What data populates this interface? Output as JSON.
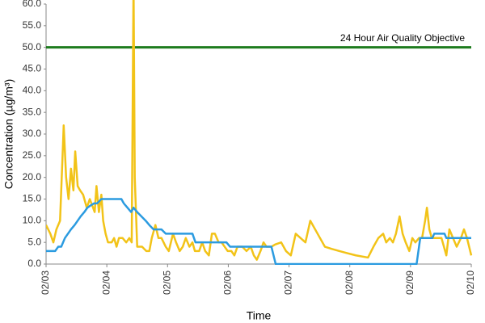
{
  "chart_data": {
    "type": "line",
    "ylabel": "Concentration (µg/m³)",
    "xlabel": "Time",
    "xlim": [
      0,
      7
    ],
    "xticks": [
      {
        "value": 0,
        "label": "02/03"
      },
      {
        "value": 1,
        "label": "02/04"
      },
      {
        "value": 2,
        "label": "02/05"
      },
      {
        "value": 3,
        "label": "02/06"
      },
      {
        "value": 4,
        "label": "02/07"
      },
      {
        "value": 5,
        "label": "02/08"
      },
      {
        "value": 6,
        "label": "02/09"
      },
      {
        "value": 7,
        "label": "02/10"
      }
    ],
    "ylim": [
      0,
      60
    ],
    "yticks": [
      {
        "value": 0,
        "label": "0.0"
      },
      {
        "value": 5,
        "label": "5.0"
      },
      {
        "value": 10,
        "label": "10.0"
      },
      {
        "value": 15,
        "label": "15.0"
      },
      {
        "value": 20,
        "label": "20.0"
      },
      {
        "value": 25,
        "label": "25.0"
      },
      {
        "value": 30,
        "label": "30.0"
      },
      {
        "value": 35,
        "label": "35.0"
      },
      {
        "value": 40,
        "label": "40.0"
      },
      {
        "value": 45,
        "label": "45.0"
      },
      {
        "value": 50,
        "label": "50.0"
      },
      {
        "value": 55,
        "label": "55.0"
      },
      {
        "value": 60,
        "label": "60.0"
      }
    ],
    "objective": {
      "label": "24 Hour Air Quality Objective",
      "value": 50,
      "color": "#1e7b1e"
    },
    "series": [
      {
        "color": "#f2c318",
        "x": [
          0,
          0.07,
          0.12,
          0.17,
          0.23,
          0.28,
          0.29,
          0.33,
          0.37,
          0.41,
          0.45,
          0.48,
          0.52,
          0.56,
          0.61,
          0.67,
          0.72,
          0.8,
          0.83,
          0.87,
          0.91,
          0.94,
          0.98,
          1.02,
          1.08,
          1.12,
          1.16,
          1.2,
          1.26,
          1.32,
          1.37,
          1.41,
          1.44,
          1.46,
          1.5,
          1.58,
          1.65,
          1.7,
          1.74,
          1.8,
          1.85,
          1.9,
          1.97,
          2.02,
          2.09,
          2.14,
          2.2,
          2.25,
          2.3,
          2.36,
          2.41,
          2.45,
          2.52,
          2.57,
          2.62,
          2.68,
          2.73,
          2.78,
          2.84,
          2.89,
          2.94,
          2.99,
          3.05,
          3.1,
          3.15,
          3.23,
          3.3,
          3.37,
          3.42,
          3.47,
          3.53,
          3.58,
          3.63,
          3.71,
          3.77,
          3.87,
          3.95,
          4.03,
          4.11,
          4.19,
          4.27,
          4.35,
          4.43,
          4.51,
          4.59,
          4.7,
          4.83,
          4.96,
          5.1,
          5.3,
          5.39,
          5.47,
          5.55,
          5.6,
          5.66,
          5.71,
          5.76,
          5.82,
          5.87,
          5.92,
          5.98,
          6.03,
          6.08,
          6.14,
          6.19,
          6.24,
          6.27,
          6.31,
          6.35,
          6.43,
          6.51,
          6.59,
          6.64,
          6.7,
          6.76,
          6.83,
          6.88,
          6.93,
          7.0
        ],
        "values": [
          9,
          7,
          5,
          8,
          10,
          28,
          32,
          20,
          15,
          22,
          17,
          26,
          18,
          17,
          16,
          13,
          15,
          12,
          18,
          12,
          16,
          10,
          7,
          5,
          5,
          6,
          4,
          6,
          6,
          5,
          6,
          5,
          65,
          20,
          4,
          4,
          3,
          3,
          6,
          9,
          6,
          6,
          4,
          3,
          7,
          5,
          3,
          4,
          6,
          4,
          5,
          3,
          3,
          5,
          3,
          2,
          7,
          7,
          5,
          5,
          4,
          3,
          3,
          2,
          4,
          4,
          3,
          4,
          2,
          1,
          3,
          5,
          4,
          4,
          4.5,
          5,
          3,
          2,
          7,
          6,
          5,
          10,
          8,
          6,
          4,
          3.5,
          3,
          2.5,
          2,
          1.5,
          4,
          6,
          7,
          5,
          6,
          5,
          7,
          11,
          7,
          5,
          3,
          6,
          5,
          6,
          6,
          10,
          13,
          8,
          6,
          6,
          6,
          2,
          8,
          6,
          4,
          6,
          8,
          6,
          2
        ]
      },
      {
        "color": "#2b9be0",
        "x": [
          0,
          0.15,
          0.2,
          0.25,
          0.31,
          0.36,
          0.41,
          0.47,
          0.52,
          0.57,
          0.63,
          0.68,
          0.73,
          0.79,
          0.84,
          0.91,
          1.24,
          1.28,
          1.34,
          1.4,
          1.44,
          1.5,
          1.57,
          1.64,
          1.7,
          1.77,
          1.84,
          1.9,
          1.97,
          2.41,
          2.46,
          2.97,
          3.03,
          3.71,
          3.78,
          6.1,
          6.16,
          6.36,
          6.39,
          6.56,
          6.59,
          7.0
        ],
        "values": [
          3,
          3,
          4,
          4,
          6,
          7,
          8,
          9,
          10,
          11,
          12,
          13,
          13.5,
          14,
          14,
          15,
          15,
          14,
          13,
          12,
          13,
          12,
          11,
          10,
          9,
          8,
          8,
          8,
          7,
          7,
          5,
          5,
          4,
          4,
          0,
          0,
          6,
          6,
          7,
          7,
          6,
          6
        ]
      }
    ]
  }
}
